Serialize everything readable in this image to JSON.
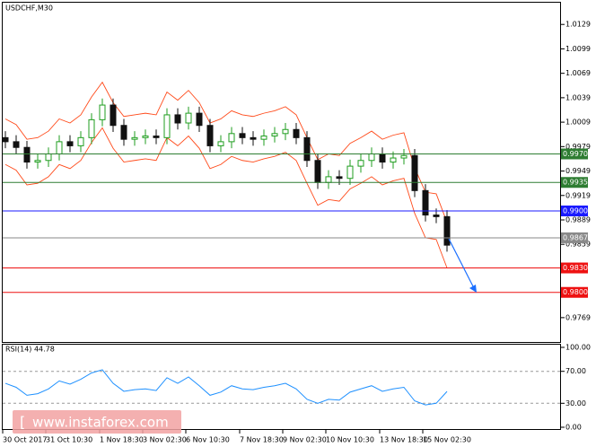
{
  "chart_data": {
    "type": "candlestick",
    "title": "USDCHF,M30",
    "categories": [
      "30 Oct 2017",
      null,
      null,
      null,
      "31 Oct 10:30",
      null,
      null,
      null,
      null,
      "1 Nov 18:30",
      null,
      null,
      null,
      "3 Nov 02:30",
      null,
      null,
      null,
      "6 Nov 10:30",
      null,
      null,
      null,
      null,
      "7 Nov 18:30",
      null,
      null,
      null,
      "9 Nov 02:30",
      null,
      null,
      null,
      "10 Nov 10:30",
      null,
      null,
      null,
      null,
      "13 Nov 18:30",
      null,
      null,
      null,
      "15 Nov 02:30",
      null,
      null
    ],
    "open": [
      0.999,
      0.9985,
      0.9978,
      0.996,
      0.9962,
      0.997,
      0.9985,
      0.998,
      0.999,
      1.0012,
      1.003,
      1.0005,
      0.9988,
      0.999,
      0.9992,
      0.999,
      1.0018,
      1.0008,
      1.002,
      1.0005,
      0.998,
      0.9985,
      0.9995,
      0.999,
      0.9988,
      0.9992,
      0.9995,
      1.0,
      0.999,
      0.9962,
      0.9935,
      0.9942,
      0.994,
      0.9955,
      0.9962,
      0.997,
      0.996,
      0.9965,
      0.9968,
      0.9925,
      0.9895,
      0.9893
    ],
    "high": [
      0.9998,
      0.9993,
      0.9986,
      0.997,
      0.9978,
      0.9993,
      0.9993,
      0.9998,
      1.002,
      1.0038,
      1.0038,
      1.0013,
      0.9998,
      1.0,
      1.0,
      1.0026,
      1.0026,
      1.0028,
      1.0028,
      1.0013,
      0.9993,
      1.0003,
      1.0003,
      0.9998,
      1.0,
      1.0003,
      1.0008,
      1.0008,
      0.9998,
      0.997,
      0.995,
      0.995,
      0.9963,
      0.997,
      0.9978,
      0.9978,
      0.9973,
      0.9976,
      0.9976,
      0.9933,
      0.9903,
      0.9901
    ],
    "low": [
      0.9977,
      0.997,
      0.9952,
      0.9952,
      0.9954,
      0.9962,
      0.9972,
      0.9972,
      0.9982,
      1.0004,
      0.9997,
      0.998,
      0.998,
      0.9982,
      0.9982,
      0.9982,
      1.0,
      1.0,
      0.9997,
      0.9972,
      0.9972,
      0.9977,
      0.9982,
      0.998,
      0.998,
      0.9984,
      0.9987,
      0.9982,
      0.9954,
      0.9927,
      0.9927,
      0.9932,
      0.9932,
      0.9947,
      0.9954,
      0.9952,
      0.9952,
      0.9957,
      0.9917,
      0.9887,
      0.9885,
      0.985
    ],
    "close": [
      0.9985,
      0.9978,
      0.996,
      0.9962,
      0.997,
      0.9985,
      0.998,
      0.999,
      1.0012,
      1.003,
      1.0005,
      0.9988,
      0.999,
      0.9992,
      0.999,
      1.0018,
      1.0008,
      1.002,
      1.0005,
      0.998,
      0.9985,
      0.9995,
      0.999,
      0.9988,
      0.9992,
      0.9995,
      1.0,
      0.999,
      0.9962,
      0.9935,
      0.9942,
      0.994,
      0.9955,
      0.9962,
      0.997,
      0.996,
      0.9965,
      0.9968,
      0.9925,
      0.9895,
      0.9893,
      0.9858
    ],
    "upper": [
      1.0013,
      1.0006,
      0.9988,
      0.999,
      0.9998,
      1.0013,
      1.0008,
      1.0018,
      1.004,
      1.0058,
      1.0033,
      1.0016,
      1.0018,
      1.002,
      1.0018,
      1.0046,
      1.0036,
      1.0048,
      1.0033,
      1.0008,
      1.0013,
      1.0023,
      1.0018,
      1.0016,
      1.002,
      1.0023,
      1.0028,
      1.0018,
      0.999,
      0.9963,
      0.997,
      0.9968,
      0.9983,
      0.999,
      0.9998,
      0.9988,
      0.9993,
      0.9996,
      0.9953,
      0.9923,
      0.9921,
      0.9886
    ],
    "lower": [
      0.9957,
      0.995,
      0.9932,
      0.9934,
      0.9942,
      0.9957,
      0.9952,
      0.9962,
      0.9984,
      1.0002,
      0.9977,
      0.996,
      0.9962,
      0.9964,
      0.9962,
      0.999,
      0.998,
      0.9992,
      0.9977,
      0.9952,
      0.9957,
      0.9967,
      0.9962,
      0.996,
      0.9964,
      0.9967,
      0.9972,
      0.9962,
      0.9934,
      0.9907,
      0.9914,
      0.9912,
      0.9927,
      0.9934,
      0.9942,
      0.9932,
      0.9937,
      0.994,
      0.9897,
      0.9867,
      0.9865,
      0.983
    ],
    "up_color": "#1f9e1f",
    "down_color": "#111111",
    "band_color": "#ff4a1a",
    "ylim": [
      0.9738,
      1.0159
    ],
    "yticks": [
      1.0129,
      1.0099,
      1.0069,
      1.0039,
      1.0009,
      0.9979,
      0.9949,
      0.9919,
      0.9889,
      0.9859,
      0.9769
    ],
    "levels": [
      {
        "value": {
          "value": 0.997,
          "label": "0.9970"
        },
        "color": "#2e7d32"
      },
      {
        "value": 0.9935,
        "color": "#2e7d32"
      },
      {
        "value": {
          "value": 0.99,
          "label": "0.9900"
        },
        "color": "#1a1aff"
      },
      {
        "value": 0.9867,
        "color": "#8a8a8a"
      },
      {
        "value": {
          "value": 0.983,
          "label": "0.9830"
        },
        "color": "#ee1111"
      },
      {
        "value": {
          "value": 0.98,
          "label": "0.9800"
        },
        "color": "#ee1111"
      }
    ],
    "indicator": {
      "title": "RSI(14) 44.78",
      "color": "#1e90ff",
      "values": [
        55,
        50,
        40,
        42,
        48,
        58,
        54,
        60,
        68,
        72,
        55,
        45,
        47,
        48,
        46,
        62,
        55,
        63,
        52,
        40,
        44,
        52,
        48,
        47,
        50,
        52,
        55,
        48,
        35,
        30,
        35,
        34,
        44,
        48,
        52,
        45,
        48,
        50,
        33,
        28,
        30,
        44.78
      ],
      "ylim": [
        0,
        100
      ],
      "yticks": [
        {
          "value": 100,
          "label": "100.00"
        },
        {
          "value": 70,
          "label": "70.00"
        },
        {
          "value": 30,
          "label": "30.00"
        },
        {
          "value": 0,
          "label": "0.00"
        }
      ]
    },
    "watermark": "www.instaforex.com"
  }
}
